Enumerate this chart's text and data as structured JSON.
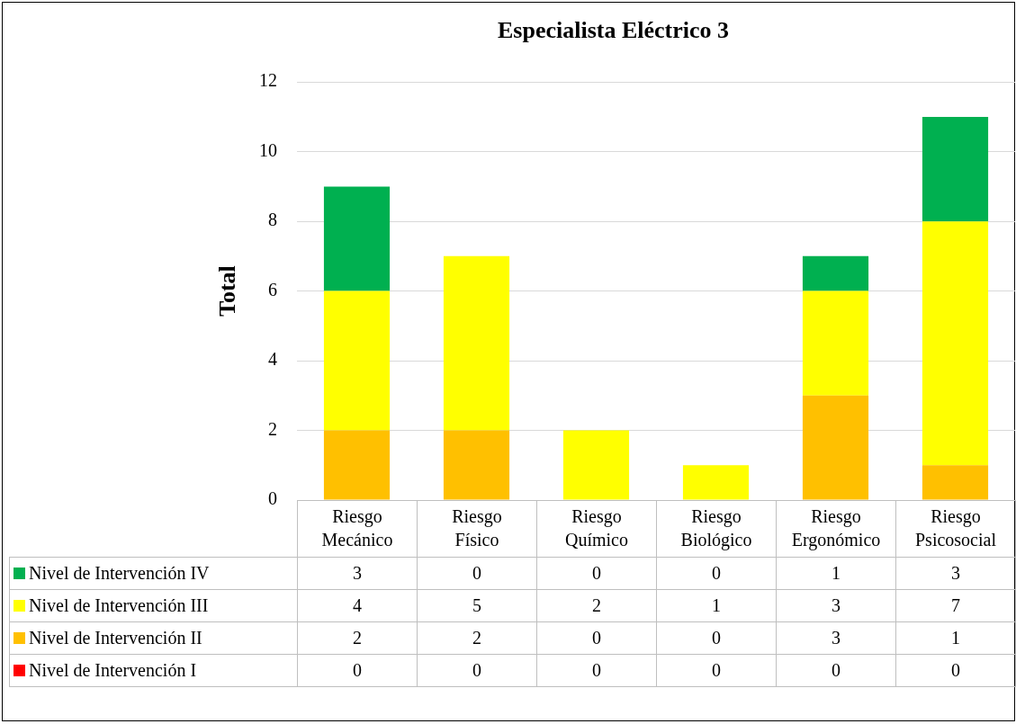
{
  "chart_data": {
    "type": "bar",
    "title": "Especialista Eléctrico 3",
    "ylabel": "Total",
    "categories": [
      "Riesgo Mecánico",
      "Riesgo Físico",
      "Riesgo Químico",
      "Riesgo Biológico",
      "Riesgo Ergonómico",
      "Riesgo Psicosocial"
    ],
    "stacked": true,
    "series": [
      {
        "name": "Nivel de Intervención I",
        "color": "#ff0000",
        "values": [
          0,
          0,
          0,
          0,
          0,
          0
        ]
      },
      {
        "name": "Nivel de Intervención II",
        "color": "#ffc000",
        "values": [
          2,
          2,
          0,
          0,
          3,
          1
        ]
      },
      {
        "name": "Nivel de Intervención III",
        "color": "#ffff00",
        "values": [
          4,
          5,
          2,
          1,
          3,
          7
        ]
      },
      {
        "name": "Nivel de Intervención IV",
        "color": "#00b050",
        "values": [
          3,
          0,
          0,
          0,
          1,
          3
        ]
      }
    ],
    "ylim": [
      0,
      12
    ],
    "yticks": [
      0,
      2,
      4,
      6,
      8,
      10,
      12
    ],
    "grid": "y",
    "legend": "bottom",
    "data_labels": true
  }
}
